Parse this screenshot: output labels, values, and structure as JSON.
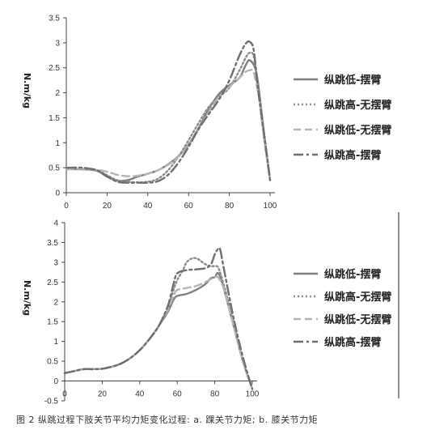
{
  "caption": "图 2   纵跳过程下肢关节平均力矩变化过程: a. 踝关节力矩; b. 膝关节力矩",
  "series_styles": [
    {
      "name": "纵跳低-摆臂",
      "color": "#7f7f7f",
      "dash": "none"
    },
    {
      "name": "纵跳高-无摆臂",
      "color": "#8c8c8c",
      "dash": "2,3"
    },
    {
      "name": "纵跳低-无摆臂",
      "color": "#b5b5b5",
      "dash": "9,5"
    },
    {
      "name": "纵跳高-摆臂",
      "color": "#6e6e6e",
      "dash": "12,4,3,4"
    }
  ],
  "chart_data": [
    {
      "type": "line",
      "ylabel": "N.m/kg",
      "xlim": [
        0,
        100
      ],
      "ylim": [
        0,
        3.5
      ],
      "xticks": [
        0,
        20,
        40,
        60,
        80,
        100
      ],
      "yticks": [
        0,
        0.5,
        1,
        1.5,
        2,
        2.5,
        3,
        3.5
      ],
      "ytick_labels": [
        "0",
        "0.5",
        "1",
        "1.5",
        "2",
        "2.5",
        "3",
        "3.5"
      ],
      "legend_position": "right",
      "series": [
        {
          "name": "纵跳低-摆臂",
          "x": [
            0,
            8,
            15,
            20,
            25,
            30,
            35,
            40,
            45,
            50,
            55,
            60,
            65,
            70,
            75,
            80,
            85,
            88,
            90,
            93,
            95,
            97,
            100
          ],
          "y": [
            0.47,
            0.47,
            0.44,
            0.32,
            0.24,
            0.25,
            0.32,
            0.38,
            0.45,
            0.57,
            0.73,
            0.96,
            1.3,
            1.68,
            1.98,
            2.15,
            2.3,
            2.55,
            2.65,
            2.45,
            1.9,
            1.2,
            0.25
          ]
        },
        {
          "name": "纵跳高-无摆臂",
          "x": [
            0,
            8,
            15,
            20,
            25,
            30,
            35,
            40,
            45,
            50,
            55,
            60,
            65,
            70,
            75,
            80,
            85,
            88,
            90,
            92,
            94,
            97,
            100
          ],
          "y": [
            0.47,
            0.47,
            0.45,
            0.35,
            0.25,
            0.22,
            0.21,
            0.22,
            0.28,
            0.45,
            0.72,
            1.05,
            1.4,
            1.72,
            1.92,
            2.1,
            2.45,
            2.7,
            2.8,
            2.72,
            2.1,
            1.1,
            0.25
          ]
        },
        {
          "name": "纵跳低-无摆臂",
          "x": [
            0,
            8,
            15,
            20,
            25,
            30,
            35,
            40,
            45,
            50,
            55,
            60,
            65,
            70,
            75,
            80,
            85,
            88,
            90,
            92,
            95,
            97,
            100
          ],
          "y": [
            0.47,
            0.48,
            0.46,
            0.42,
            0.36,
            0.33,
            0.34,
            0.38,
            0.45,
            0.56,
            0.72,
            0.95,
            1.28,
            1.62,
            1.92,
            2.12,
            2.3,
            2.42,
            2.45,
            2.4,
            1.8,
            1.1,
            0.25
          ]
        },
        {
          "name": "纵跳高-摆臂",
          "x": [
            0,
            8,
            15,
            20,
            25,
            30,
            35,
            40,
            45,
            50,
            55,
            60,
            65,
            70,
            75,
            80,
            85,
            88,
            90,
            92,
            94,
            97,
            100
          ],
          "y": [
            0.5,
            0.5,
            0.45,
            0.33,
            0.22,
            0.2,
            0.2,
            0.2,
            0.23,
            0.36,
            0.6,
            0.92,
            1.28,
            1.58,
            1.87,
            2.25,
            2.75,
            2.98,
            3.02,
            2.85,
            2.1,
            1.2,
            0.25
          ]
        }
      ]
    },
    {
      "type": "line",
      "ylabel": "N.m/kg",
      "xlim": [
        0,
        100
      ],
      "ylim": [
        -0.5,
        4
      ],
      "xticks": [
        0,
        20,
        40,
        60,
        80,
        100
      ],
      "yticks": [
        -0.5,
        0,
        0.5,
        1,
        1.5,
        2,
        2.5,
        3,
        3.5,
        4
      ],
      "ytick_labels": [
        "-0.5",
        "0",
        "0.5",
        "1",
        "1.5",
        "2",
        "2.5",
        "3",
        "3.5",
        "4"
      ],
      "legend_position": "right",
      "series": [
        {
          "name": "纵跳低-摆臂",
          "x": [
            0,
            5,
            10,
            15,
            20,
            25,
            30,
            35,
            40,
            45,
            50,
            55,
            58,
            60,
            65,
            70,
            75,
            78,
            80,
            82,
            85,
            90,
            95,
            100
          ],
          "y": [
            0.2,
            0.25,
            0.3,
            0.3,
            0.31,
            0.36,
            0.44,
            0.58,
            0.78,
            1.05,
            1.38,
            1.75,
            2.05,
            2.15,
            2.2,
            2.3,
            2.45,
            2.6,
            2.62,
            2.72,
            2.3,
            1.4,
            0.5,
            -0.2
          ]
        },
        {
          "name": "纵跳高-无摆臂",
          "x": [
            0,
            5,
            10,
            15,
            20,
            25,
            30,
            35,
            40,
            45,
            50,
            55,
            58,
            60,
            63,
            65,
            68,
            70,
            72,
            75,
            78,
            80,
            82,
            85,
            90,
            95,
            100
          ],
          "y": [
            0.2,
            0.25,
            0.3,
            0.3,
            0.31,
            0.36,
            0.44,
            0.58,
            0.78,
            1.05,
            1.38,
            1.85,
            2.3,
            2.55,
            2.8,
            3.0,
            3.1,
            3.1,
            3.05,
            2.95,
            2.9,
            2.9,
            2.85,
            2.4,
            1.5,
            0.5,
            -0.2
          ]
        },
        {
          "name": "纵跳低-无摆臂",
          "x": [
            0,
            5,
            10,
            15,
            20,
            25,
            30,
            35,
            40,
            45,
            50,
            55,
            58,
            60,
            65,
            70,
            75,
            80,
            82,
            85,
            90,
            95,
            100
          ],
          "y": [
            0.2,
            0.25,
            0.3,
            0.3,
            0.31,
            0.36,
            0.44,
            0.58,
            0.78,
            1.05,
            1.38,
            1.8,
            2.15,
            2.3,
            2.35,
            2.4,
            2.5,
            2.62,
            2.6,
            2.3,
            1.4,
            0.5,
            -0.2
          ]
        },
        {
          "name": "纵跳高-摆臂",
          "x": [
            0,
            5,
            10,
            15,
            20,
            25,
            30,
            35,
            40,
            45,
            50,
            55,
            58,
            60,
            65,
            70,
            75,
            78,
            80,
            82,
            83,
            85,
            90,
            95,
            100
          ],
          "y": [
            0.2,
            0.25,
            0.3,
            0.3,
            0.31,
            0.36,
            0.44,
            0.58,
            0.78,
            1.05,
            1.38,
            1.9,
            2.45,
            2.72,
            2.8,
            2.82,
            2.85,
            2.95,
            3.2,
            3.35,
            3.3,
            2.8,
            1.6,
            0.6,
            -0.2
          ]
        }
      ]
    }
  ]
}
